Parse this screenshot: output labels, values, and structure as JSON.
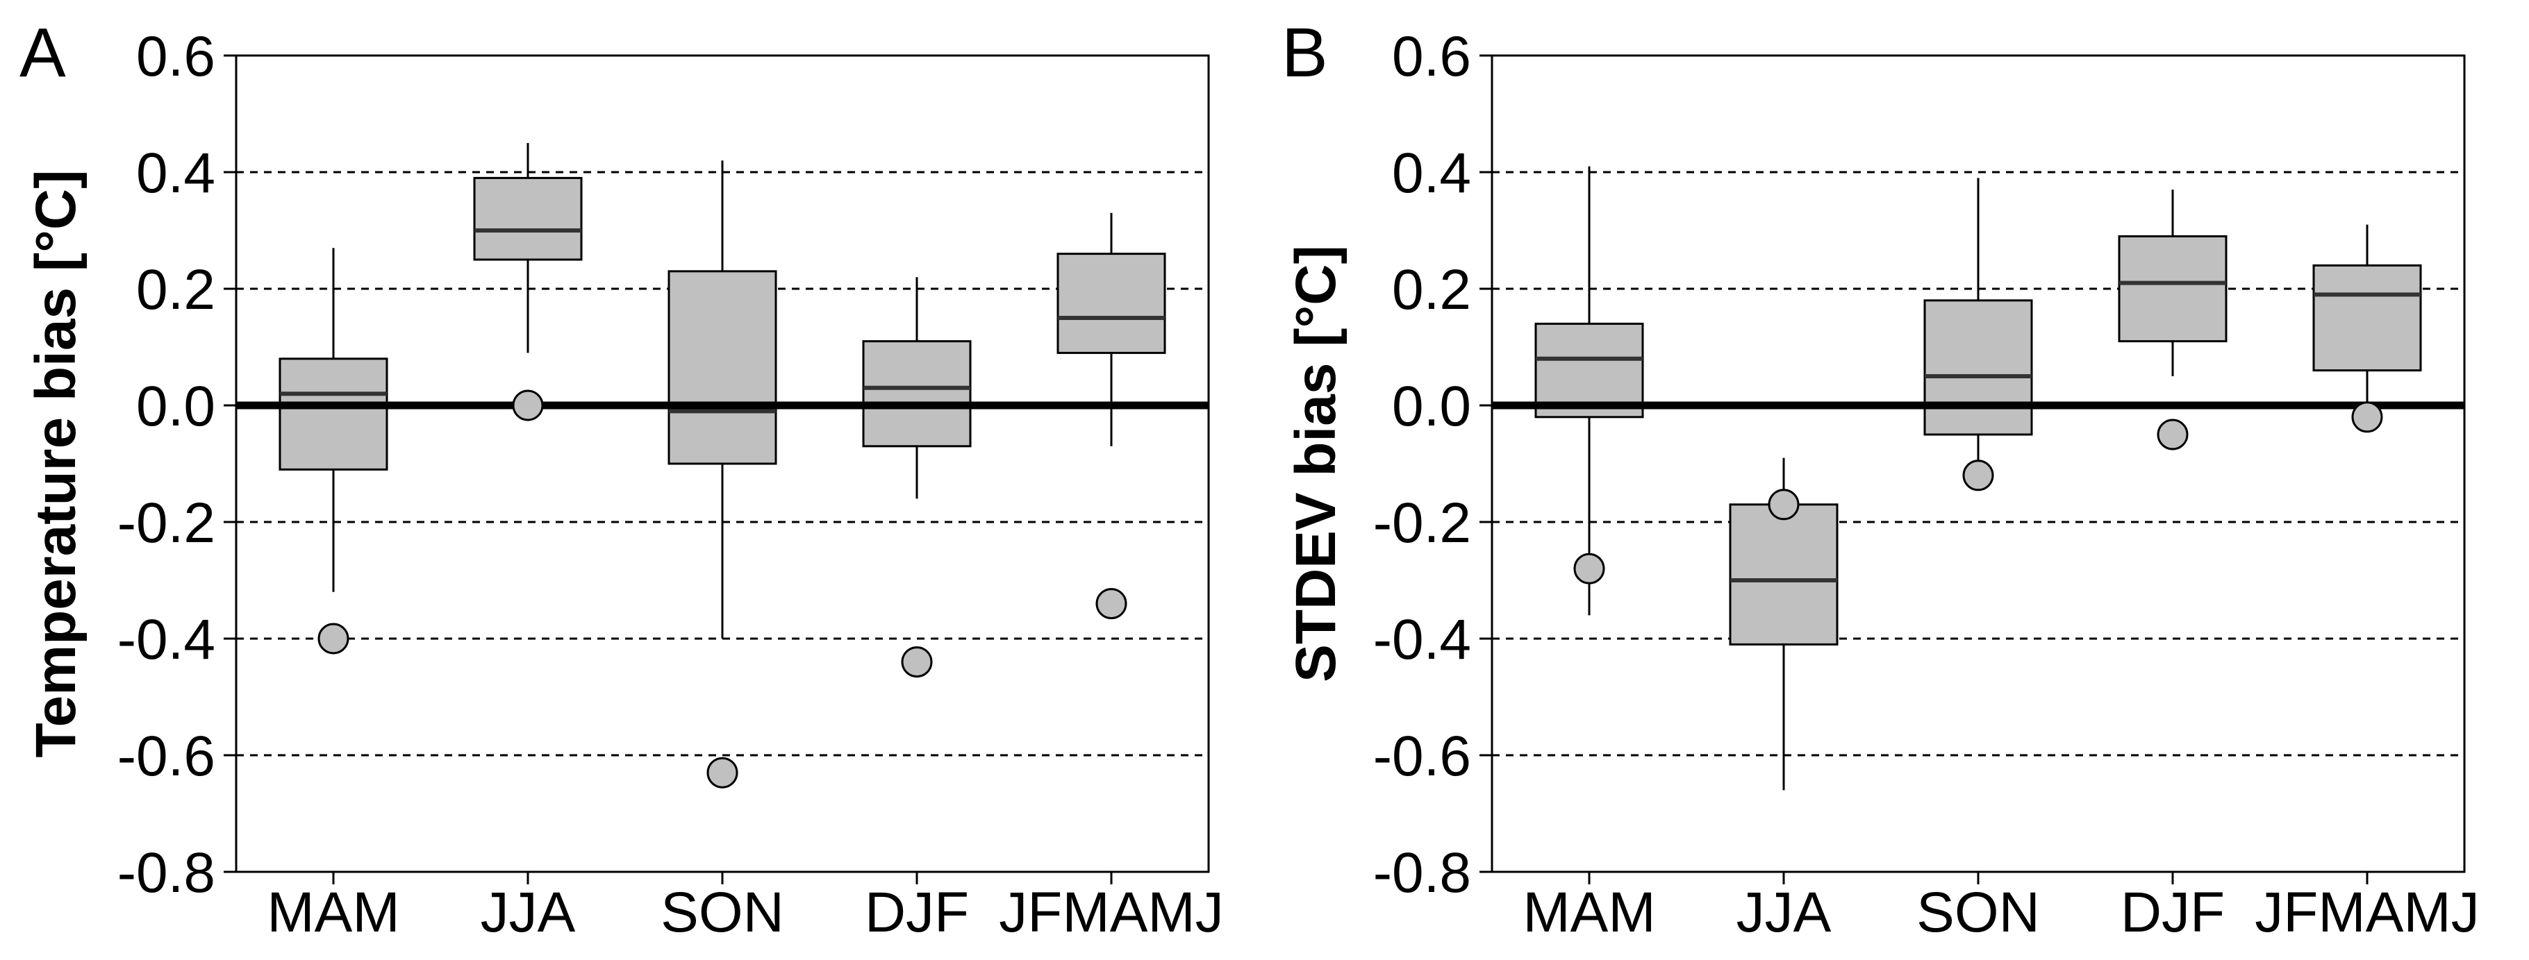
{
  "chart_data": [
    {
      "panel_label": "A",
      "type": "box",
      "ylabel": "Temperature bias [°C]",
      "ylim": [
        -0.8,
        0.6
      ],
      "yticks": [
        0.6,
        0.4,
        0.2,
        0.0,
        -0.2,
        -0.4,
        -0.6,
        -0.8
      ],
      "ytick_labels": [
        "0.6",
        "0.4",
        "0.2",
        "0.0",
        "-0.2",
        "-0.4",
        "-0.6",
        "-0.8"
      ],
      "dashed_gridlines": [
        0.4,
        0.2,
        -0.2,
        -0.4,
        -0.6
      ],
      "zero_line": 0.0,
      "categories": [
        "MAM",
        "JJA",
        "SON",
        "DJF",
        "JFMAMJ"
      ],
      "boxes": [
        {
          "whisker_low": -0.32,
          "q1": -0.11,
          "median": 0.02,
          "q3": 0.08,
          "whisker_high": 0.27,
          "point": -0.4
        },
        {
          "whisker_low": 0.09,
          "q1": 0.25,
          "median": 0.3,
          "q3": 0.39,
          "whisker_high": 0.45,
          "point": 0.0
        },
        {
          "whisker_low": -0.4,
          "q1": -0.1,
          "median": -0.01,
          "q3": 0.23,
          "whisker_high": 0.42,
          "point": -0.63
        },
        {
          "whisker_low": -0.16,
          "q1": -0.07,
          "median": 0.03,
          "q3": 0.11,
          "whisker_high": 0.22,
          "point": -0.44
        },
        {
          "whisker_low": -0.07,
          "q1": 0.09,
          "median": 0.15,
          "q3": 0.26,
          "whisker_high": 0.33,
          "point": -0.34
        }
      ]
    },
    {
      "panel_label": "B",
      "type": "box",
      "ylabel": "STDEV bias [°C]",
      "ylim": [
        -0.8,
        0.6
      ],
      "yticks": [
        0.6,
        0.4,
        0.2,
        0.0,
        -0.2,
        -0.4,
        -0.6,
        -0.8
      ],
      "ytick_labels": [
        "0.6",
        "0.4",
        "0.2",
        "0.0",
        "-0.2",
        "-0.4",
        "-0.6",
        "-0.8"
      ],
      "dashed_gridlines": [
        0.4,
        0.2,
        -0.2,
        -0.4,
        -0.6
      ],
      "zero_line": 0.0,
      "categories": [
        "MAM",
        "JJA",
        "SON",
        "DJF",
        "JFMAMJ"
      ],
      "boxes": [
        {
          "whisker_low": -0.36,
          "q1": -0.02,
          "median": 0.08,
          "q3": 0.14,
          "whisker_high": 0.41,
          "point": -0.28
        },
        {
          "whisker_low": -0.66,
          "q1": -0.41,
          "median": -0.3,
          "q3": -0.17,
          "whisker_high": -0.09,
          "point": -0.17
        },
        {
          "whisker_low": -0.1,
          "q1": -0.05,
          "median": 0.05,
          "q3": 0.18,
          "whisker_high": 0.39,
          "point": -0.12
        },
        {
          "whisker_low": 0.05,
          "q1": 0.11,
          "median": 0.21,
          "q3": 0.29,
          "whisker_high": 0.37,
          "point": -0.05
        },
        {
          "whisker_low": -0.02,
          "q1": 0.06,
          "median": 0.19,
          "q3": 0.24,
          "whisker_high": 0.31,
          "point": -0.02
        }
      ]
    }
  ],
  "colors": {
    "box_fill": "#c0c0c0",
    "point_fill": "#c0c0c0",
    "stroke": "#000000",
    "median": "#333333",
    "grid": "#000000"
  }
}
